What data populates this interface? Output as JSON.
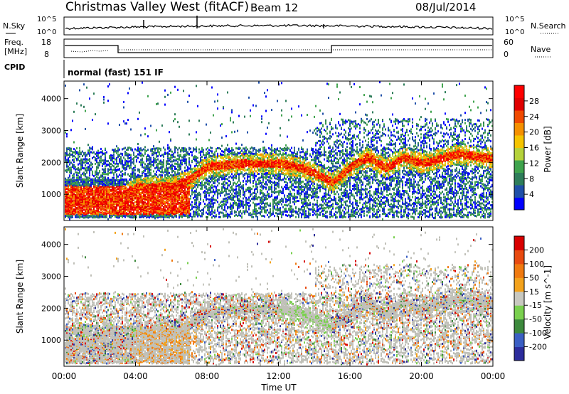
{
  "header": {
    "title": "Christmas Valley West (fitACF)",
    "beam": "Beam 12",
    "date": "08/Jul/2014"
  },
  "panels": {
    "nsky_label": "N.Sky",
    "nsearch_label": "N.Search",
    "nsky_ticks": [
      "10^5",
      "10^0"
    ],
    "nsearch_ticks": [
      "10^5",
      "10^0"
    ],
    "freq_label": "Freq.",
    "freq_unit": "[MHz]",
    "freq_ticks": [
      "18",
      "8"
    ],
    "nave_label": "Nave",
    "nave_ticks": [
      "60",
      "0"
    ],
    "cpid_label": "CPID",
    "cpid_value": "normal (fast) 151 IF"
  },
  "colors": {
    "power_scale": [
      "#0000ff",
      "#1f4fa8",
      "#2e7d5a",
      "#3fa34d",
      "#b5d23b",
      "#f5c400",
      "#f59000",
      "#f04a00",
      "#e00000",
      "#ff0000"
    ],
    "velocity_scale": [
      "#2c2c9c",
      "#3b5fc4",
      "#3d8a3d",
      "#7ad04f",
      "#c8c8c0",
      "#f3a21c",
      "#f07a10",
      "#e84a10",
      "#d80000"
    ],
    "ground_scatter": "#c0c0b8"
  },
  "chart_data": [
    {
      "type": "heatmap",
      "title": "",
      "xlabel": "Time UT",
      "ylabel": "Slant Range [km]",
      "colorbar_label": "Power [dB]",
      "x_ticks": [
        "00:00",
        "04:00",
        "08:00",
        "12:00",
        "16:00",
        "20:00",
        "00:00"
      ],
      "y_ticks": [
        "1000",
        "2000",
        "3000",
        "4000"
      ],
      "colorbar_ticks": [
        "4",
        "8",
        "12",
        "16",
        "20",
        "24",
        "28"
      ],
      "xlim": [
        0,
        24
      ],
      "ylim": [
        180,
        4550
      ],
      "band_center_km": [
        [
          0,
          850
        ],
        [
          2,
          800
        ],
        [
          3,
          900
        ],
        [
          4,
          1250
        ],
        [
          6,
          1300
        ],
        [
          7,
          1500
        ],
        [
          8,
          1900
        ],
        [
          10,
          2000
        ],
        [
          12,
          2000
        ],
        [
          13,
          1900
        ],
        [
          14,
          1700
        ],
        [
          15,
          1400
        ],
        [
          16,
          1900
        ],
        [
          17,
          2200
        ],
        [
          18,
          1850
        ],
        [
          19,
          2200
        ],
        [
          20,
          2000
        ],
        [
          22,
          2300
        ],
        [
          24,
          2150
        ]
      ]
    },
    {
      "type": "heatmap",
      "title": "",
      "xlabel": "Time UT",
      "ylabel": "Slant Range [km]",
      "colorbar_label": "Velocity [m s^-1]",
      "x_ticks": [
        "00:00",
        "04:00",
        "08:00",
        "12:00",
        "16:00",
        "20:00",
        "00:00"
      ],
      "y_ticks": [
        "1000",
        "2000",
        "3000",
        "4000"
      ],
      "colorbar_ticks": [
        "200",
        "100",
        "50",
        "15",
        "-15",
        "-50",
        "-100",
        "-200"
      ],
      "xlim": [
        0,
        24
      ],
      "ylim": [
        180,
        4550
      ]
    }
  ]
}
